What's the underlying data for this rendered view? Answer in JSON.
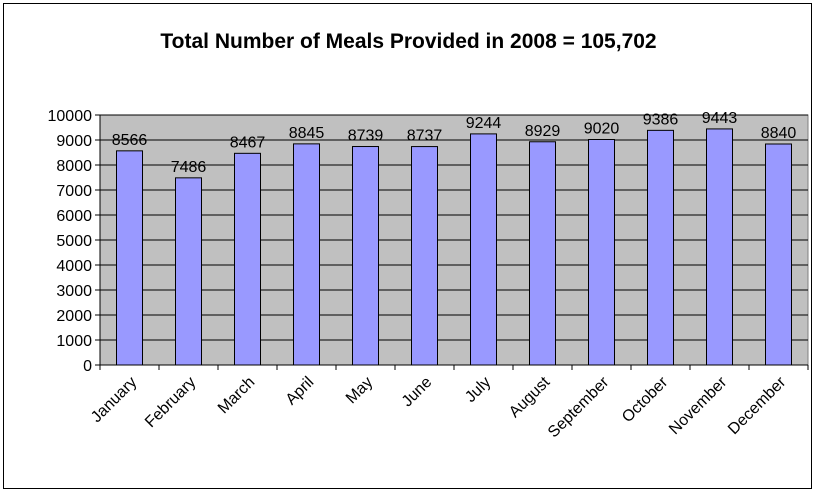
{
  "chart_data": {
    "type": "bar",
    "title": "Total Number of Meals Provided in 2008 = 105,702",
    "xlabel": "",
    "ylabel": "",
    "categories": [
      "January",
      "February",
      "March",
      "April",
      "May",
      "June",
      "July",
      "August",
      "September",
      "October",
      "November",
      "December"
    ],
    "values": [
      8566,
      7486,
      8467,
      8845,
      8739,
      8737,
      9244,
      8929,
      9020,
      9386,
      9443,
      8840
    ],
    "data_labels": [
      "8566",
      "7486",
      "8467",
      "8845",
      "8739",
      "8737",
      "9244",
      "8929",
      "9020",
      "9386",
      "9443",
      "8840"
    ],
    "ylim": [
      0,
      10000
    ],
    "yticks": [
      0,
      1000,
      2000,
      3000,
      4000,
      5000,
      6000,
      7000,
      8000,
      9000,
      10000
    ],
    "ytick_labels": [
      "0",
      "1000",
      "2000",
      "3000",
      "4000",
      "5000",
      "6000",
      "7000",
      "8000",
      "9000",
      "10000"
    ],
    "grid": true,
    "legend": "none",
    "colors": {
      "bar_fill": "#9999ff",
      "bar_stroke": "#000000",
      "plot_background": "#c0c0c0",
      "gridline": "#000000"
    }
  }
}
